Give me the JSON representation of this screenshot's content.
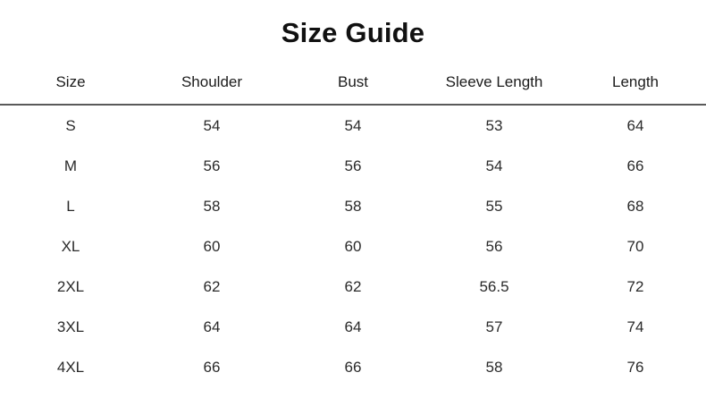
{
  "page": {
    "title": "Size Guide"
  },
  "table": {
    "columns": [
      "Size",
      "Shoulder",
      "Bust",
      "Sleeve Length",
      "Length"
    ],
    "rows": [
      {
        "size": "S",
        "shoulder": "54",
        "bust": "54",
        "sleeve_length": "53",
        "length": "64"
      },
      {
        "size": "M",
        "shoulder": "56",
        "bust": "56",
        "sleeve_length": "54",
        "length": "66"
      },
      {
        "size": "L",
        "shoulder": "58",
        "bust": "58",
        "sleeve_length": "55",
        "length": "68"
      },
      {
        "size": "XL",
        "shoulder": "60",
        "bust": "60",
        "sleeve_length": "56",
        "length": "70"
      },
      {
        "size": "2XL",
        "shoulder": "62",
        "bust": "62",
        "sleeve_length": "56.5",
        "length": "72"
      },
      {
        "size": "3XL",
        "shoulder": "64",
        "bust": "64",
        "sleeve_length": "57",
        "length": "74"
      },
      {
        "size": "4XL",
        "shoulder": "66",
        "bust": "66",
        "sleeve_length": "58",
        "length": "76"
      }
    ]
  },
  "colors": {
    "background": "#ffffff",
    "title_text": "#111111",
    "body_text": "#2a2a2a",
    "divider": "#5a5a5a"
  }
}
